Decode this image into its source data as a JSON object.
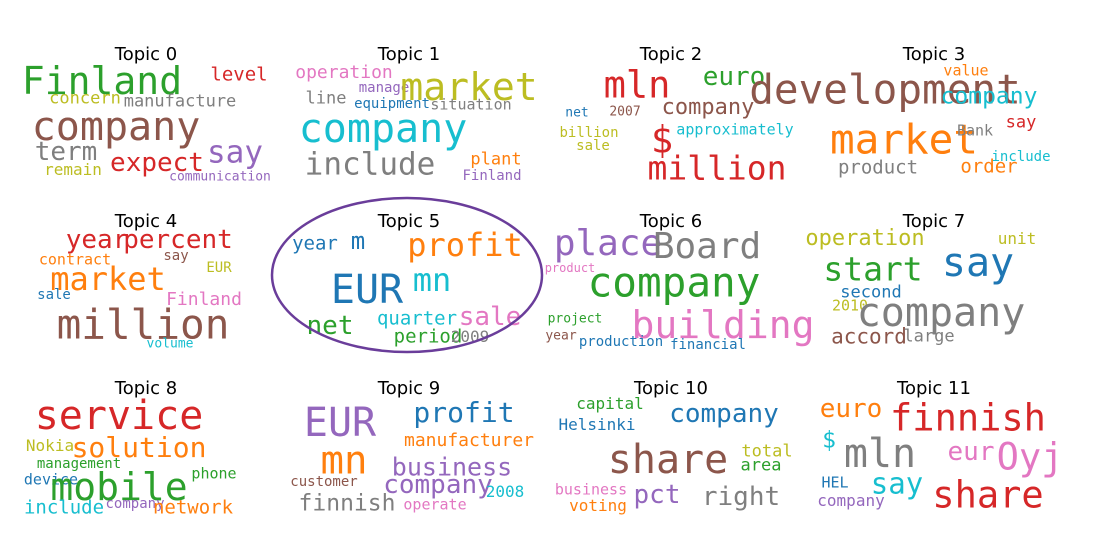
{
  "topics": [
    {
      "title": "Topic 0",
      "words": [
        {
          "text": "Finland",
          "color": "#2ca02c"
        },
        {
          "text": "level",
          "color": "#d62728"
        },
        {
          "text": "concern",
          "color": "#bcbd22"
        },
        {
          "text": "manufacture",
          "color": "#7f7f7f"
        },
        {
          "text": "company",
          "color": "#8c564b"
        },
        {
          "text": "say",
          "color": "#9467bd"
        },
        {
          "text": "term",
          "color": "#7f7f7f"
        },
        {
          "text": "expect",
          "color": "#d62728"
        },
        {
          "text": "remain",
          "color": "#bcbd22"
        },
        {
          "text": "communication",
          "color": "#9467bd"
        }
      ]
    },
    {
      "title": "Topic 1",
      "words": [
        {
          "text": "operation",
          "color": "#e377c2"
        },
        {
          "text": "manage",
          "color": "#9467bd"
        },
        {
          "text": "market",
          "color": "#bcbd22"
        },
        {
          "text": "line",
          "color": "#7f7f7f"
        },
        {
          "text": "equipment",
          "color": "#1f77b4"
        },
        {
          "text": "situation",
          "color": "#7f7f7f"
        },
        {
          "text": "company",
          "color": "#17becf"
        },
        {
          "text": "include",
          "color": "#7f7f7f"
        },
        {
          "text": "plant",
          "color": "#ff7f0e"
        },
        {
          "text": "Finland",
          "color": "#9467bd"
        }
      ]
    },
    {
      "title": "Topic 2",
      "words": [
        {
          "text": "mln",
          "color": "#d62728"
        },
        {
          "text": "euro",
          "color": "#2ca02c"
        },
        {
          "text": "company",
          "color": "#8c564b"
        },
        {
          "text": "net",
          "color": "#1f77b4"
        },
        {
          "text": "2007",
          "color": "#8c564b"
        },
        {
          "text": "billion",
          "color": "#bcbd22"
        },
        {
          "text": "$",
          "color": "#d62728"
        },
        {
          "text": "approximately",
          "color": "#17becf"
        },
        {
          "text": "sale",
          "color": "#bcbd22"
        },
        {
          "text": "million",
          "color": "#d62728"
        }
      ]
    },
    {
      "title": "Topic 3",
      "words": [
        {
          "text": "development",
          "color": "#8c564b"
        },
        {
          "text": "value",
          "color": "#ff7f0e"
        },
        {
          "text": "company",
          "color": "#17becf"
        },
        {
          "text": "market",
          "color": "#ff7f0e"
        },
        {
          "text": "say",
          "color": "#d62728"
        },
        {
          "text": "Bank",
          "color": "#7f7f7f"
        },
        {
          "text": "include",
          "color": "#17becf"
        },
        {
          "text": "product",
          "color": "#7f7f7f"
        },
        {
          "text": "order",
          "color": "#ff7f0e"
        }
      ]
    },
    {
      "title": "Topic 4",
      "words": [
        {
          "text": "year",
          "color": "#d62728"
        },
        {
          "text": "percent",
          "color": "#d62728"
        },
        {
          "text": "contract",
          "color": "#ff7f0e"
        },
        {
          "text": "say",
          "color": "#8c564b"
        },
        {
          "text": "market",
          "color": "#ff7f0e"
        },
        {
          "text": "EUR",
          "color": "#bcbd22"
        },
        {
          "text": "sale",
          "color": "#1f77b4"
        },
        {
          "text": "Finland",
          "color": "#e377c2"
        },
        {
          "text": "million",
          "color": "#8c564b"
        },
        {
          "text": "volume",
          "color": "#17becf"
        }
      ]
    },
    {
      "title": "Topic 5",
      "words": [
        {
          "text": "year",
          "color": "#1f77b4"
        },
        {
          "text": "m",
          "color": "#1f77b4"
        },
        {
          "text": "profit",
          "color": "#ff7f0e"
        },
        {
          "text": "EUR",
          "color": "#1f77b4"
        },
        {
          "text": "mn",
          "color": "#17becf"
        },
        {
          "text": "net",
          "color": "#2ca02c"
        },
        {
          "text": "quarter",
          "color": "#17becf"
        },
        {
          "text": "sale",
          "color": "#e377c2"
        },
        {
          "text": "period",
          "color": "#2ca02c"
        },
        {
          "text": "2009",
          "color": "#7f7f7f"
        }
      ]
    },
    {
      "title": "Topic 6",
      "words": [
        {
          "text": "place",
          "color": "#9467bd"
        },
        {
          "text": "Board",
          "color": "#7f7f7f"
        },
        {
          "text": "product",
          "color": "#e377c2"
        },
        {
          "text": "company",
          "color": "#2ca02c"
        },
        {
          "text": "project",
          "color": "#2ca02c"
        },
        {
          "text": "building",
          "color": "#e377c2"
        },
        {
          "text": "year",
          "color": "#8c564b"
        },
        {
          "text": "production",
          "color": "#1f77b4"
        },
        {
          "text": "financial",
          "color": "#1f77b4"
        }
      ]
    },
    {
      "title": "Topic 7",
      "words": [
        {
          "text": "operation",
          "color": "#bcbd22"
        },
        {
          "text": "unit",
          "color": "#bcbd22"
        },
        {
          "text": "start",
          "color": "#2ca02c"
        },
        {
          "text": "say",
          "color": "#1f77b4"
        },
        {
          "text": "second",
          "color": "#1f77b4"
        },
        {
          "text": "2010",
          "color": "#bcbd22"
        },
        {
          "text": "company",
          "color": "#7f7f7f"
        },
        {
          "text": "accord",
          "color": "#8c564b"
        },
        {
          "text": "large",
          "color": "#7f7f7f"
        }
      ]
    },
    {
      "title": "Topic 8",
      "words": [
        {
          "text": "service",
          "color": "#d62728"
        },
        {
          "text": "Nokia",
          "color": "#bcbd22"
        },
        {
          "text": "solution",
          "color": "#ff7f0e"
        },
        {
          "text": "management",
          "color": "#2ca02c"
        },
        {
          "text": "phone",
          "color": "#2ca02c"
        },
        {
          "text": "device",
          "color": "#1f77b4"
        },
        {
          "text": "mobile",
          "color": "#2ca02c"
        },
        {
          "text": "include",
          "color": "#17becf"
        },
        {
          "text": "company",
          "color": "#9467bd"
        },
        {
          "text": "network",
          "color": "#ff7f0e"
        }
      ]
    },
    {
      "title": "Topic 9",
      "words": [
        {
          "text": "EUR",
          "color": "#9467bd"
        },
        {
          "text": "profit",
          "color": "#1f77b4"
        },
        {
          "text": "manufacturer",
          "color": "#ff7f0e"
        },
        {
          "text": "mn",
          "color": "#ff7f0e"
        },
        {
          "text": "business",
          "color": "#9467bd"
        },
        {
          "text": "customer",
          "color": "#8c564b"
        },
        {
          "text": "company",
          "color": "#9467bd"
        },
        {
          "text": "2008",
          "color": "#17becf"
        },
        {
          "text": "finnish",
          "color": "#7f7f7f"
        },
        {
          "text": "operate",
          "color": "#e377c2"
        }
      ]
    },
    {
      "title": "Topic 10",
      "words": [
        {
          "text": "capital",
          "color": "#2ca02c"
        },
        {
          "text": "Helsinki",
          "color": "#1f77b4"
        },
        {
          "text": "company",
          "color": "#1f77b4"
        },
        {
          "text": "share",
          "color": "#8c564b"
        },
        {
          "text": "total",
          "color": "#bcbd22"
        },
        {
          "text": "area",
          "color": "#2ca02c"
        },
        {
          "text": "business",
          "color": "#e377c2"
        },
        {
          "text": "pct",
          "color": "#9467bd"
        },
        {
          "text": "voting",
          "color": "#ff7f0e"
        },
        {
          "text": "right",
          "color": "#7f7f7f"
        }
      ]
    },
    {
      "title": "Topic 11",
      "words": [
        {
          "text": "euro",
          "color": "#ff7f0e"
        },
        {
          "text": "finnish",
          "color": "#d62728"
        },
        {
          "text": "$",
          "color": "#17becf"
        },
        {
          "text": "mln",
          "color": "#7f7f7f"
        },
        {
          "text": "eur",
          "color": "#e377c2"
        },
        {
          "text": "Oyj",
          "color": "#e377c2"
        },
        {
          "text": "HEL",
          "color": "#1f77b4"
        },
        {
          "text": "say",
          "color": "#17becf"
        },
        {
          "text": "company",
          "color": "#9467bd"
        },
        {
          "text": "share",
          "color": "#d62728"
        }
      ]
    }
  ],
  "highlight": {
    "topic_index": 5,
    "color": "#6a3d9a"
  }
}
